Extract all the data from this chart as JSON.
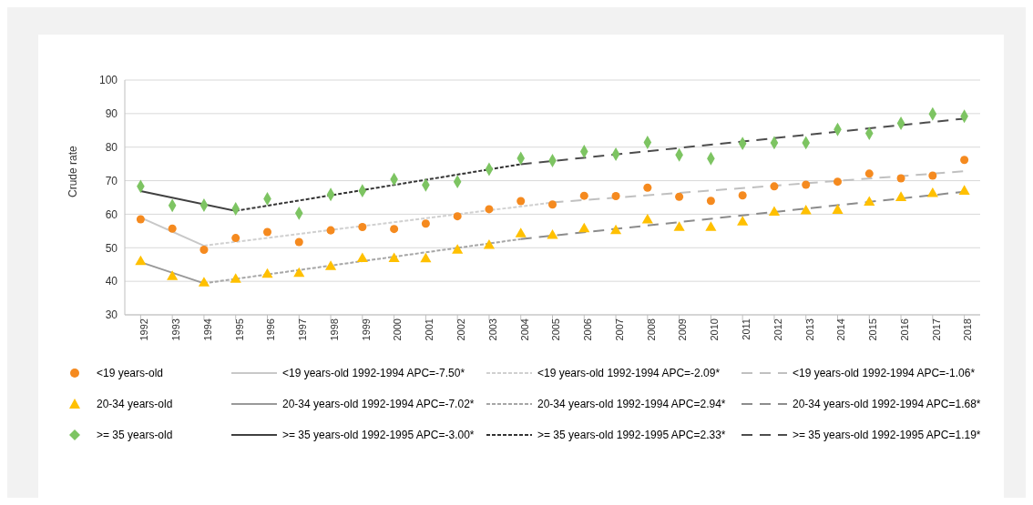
{
  "chart_data": {
    "type": "scatter",
    "ylabel": "Crude rate",
    "x": [
      1992,
      1993,
      1994,
      1995,
      1996,
      1997,
      1998,
      1999,
      2000,
      2001,
      2002,
      2003,
      2004,
      2005,
      2006,
      2007,
      2008,
      2009,
      2010,
      2011,
      2012,
      2013,
      2014,
      2015,
      2016,
      2017,
      2018
    ],
    "xlim": [
      1991.5,
      2018.5
    ],
    "xticks": [
      1992,
      1993,
      1994,
      1995,
      1996,
      1997,
      1998,
      1999,
      2000,
      2001,
      2002,
      2003,
      2004,
      2005,
      2006,
      2007,
      2008,
      2009,
      2010,
      2011,
      2012,
      2013,
      2014,
      2015,
      2016,
      2017,
      2018
    ],
    "ylim": [
      30,
      100
    ],
    "yticks": [
      30,
      40,
      50,
      60,
      70,
      80,
      90,
      100
    ],
    "grid": "y",
    "legend": "bottom",
    "series": [
      {
        "name": "<19 years-old",
        "marker": "circle",
        "color": "#f58a1f",
        "values": [
          58.5,
          55.7,
          49.4,
          52.9,
          54.7,
          51.7,
          55.2,
          56.2,
          55.6,
          57.2,
          59.4,
          61.5,
          63.9,
          62.9,
          65.5,
          65.4,
          67.9,
          65.2,
          64.0,
          65.6,
          68.3,
          68.8,
          69.7,
          72.1,
          70.7,
          71.5,
          76.2
        ]
      },
      {
        "name": "<19 years-old 1992-1994 APC=-7.50*",
        "type": "line",
        "marker": "none",
        "line_style": "solid",
        "color": "#c8c8c8",
        "x": [
          1992,
          1994
        ],
        "values": [
          59.0,
          50.6
        ]
      },
      {
        "name": "<19 years-old 1992-1994 APC=-2.09*",
        "type": "line",
        "marker": "none",
        "line_style": "dotted",
        "color": "#d0d0d0",
        "x": [
          1994,
          2005
        ],
        "values": [
          50.6,
          63.5
        ]
      },
      {
        "name": "<19 years-old 1992-1994 APC=-1.06*",
        "type": "line",
        "marker": "none",
        "line_style": "dashed",
        "color": "#c0c0c0",
        "x": [
          2005,
          2018
        ],
        "values": [
          63.5,
          72.8
        ]
      },
      {
        "name": "20-34 years-old",
        "marker": "triangle",
        "color": "#ffc000",
        "values": [
          45.8,
          41.3,
          39.4,
          40.5,
          42.0,
          42.3,
          44.3,
          46.7,
          46.7,
          46.6,
          49.2,
          50.6,
          54.1,
          53.6,
          55.6,
          55.0,
          58.2,
          56.0,
          56.0,
          57.6,
          60.5,
          60.9,
          61.1,
          63.5,
          64.9,
          66.1,
          66.8
        ]
      },
      {
        "name": "20-34 years-old 1992-1994 APC=-7.02*",
        "type": "line",
        "marker": "none",
        "line_style": "solid",
        "color": "#999999",
        "x": [
          1992,
          1994
        ],
        "values": [
          45.7,
          39.4
        ]
      },
      {
        "name": "20-34 years-old 1992-1994 APC=2.94*",
        "type": "line",
        "marker": "none",
        "line_style": "dotted",
        "color": "#a6a6a6",
        "x": [
          1994,
          2004
        ],
        "values": [
          39.4,
          52.6
        ]
      },
      {
        "name": "20-34 years-old 1992-1994 APC=1.68*",
        "type": "line",
        "marker": "none",
        "line_style": "dashed",
        "color": "#8c8c8c",
        "x": [
          2004,
          2018
        ],
        "values": [
          52.6,
          66.7
        ]
      },
      {
        "name": ">= 35 years-old",
        "marker": "diamond",
        "color": "#7dc462",
        "values": [
          68.3,
          62.6,
          62.7,
          61.6,
          64.6,
          60.3,
          65.9,
          67.0,
          70.4,
          68.7,
          69.7,
          73.4,
          76.7,
          76.0,
          78.7,
          77.9,
          81.4,
          77.7,
          76.6,
          81.1,
          81.3,
          81.3,
          85.3,
          84.1,
          87.1,
          89.9,
          89.2
        ]
      },
      {
        "name": ">= 35 years-old 1992-1995 APC=-3.00*",
        "type": "line",
        "marker": "none",
        "line_style": "solid",
        "color": "#404040",
        "x": [
          1992,
          1995
        ],
        "values": [
          66.9,
          61.0
        ]
      },
      {
        "name": ">= 35 years-old 1992-1995 APC=2.33*",
        "type": "line",
        "marker": "none",
        "line_style": "dotted",
        "color": "#333333",
        "x": [
          1995,
          2004
        ],
        "values": [
          61.0,
          74.9
        ]
      },
      {
        "name": ">= 35 years-old 1992-1995 APC=1.19*",
        "type": "line",
        "marker": "none",
        "line_style": "dashed",
        "color": "#4d4d4d",
        "x": [
          2004,
          2018
        ],
        "values": [
          74.9,
          88.5
        ]
      }
    ]
  }
}
